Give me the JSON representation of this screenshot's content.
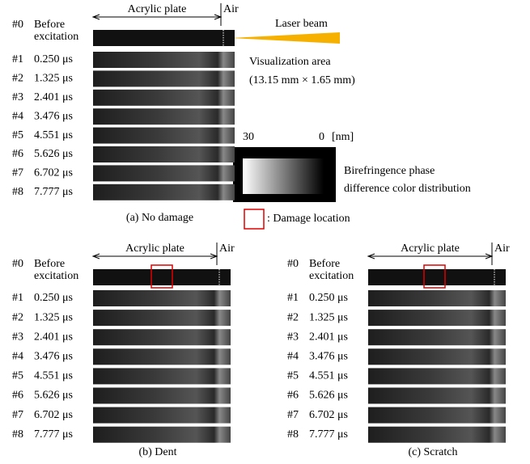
{
  "panels": [
    {
      "header": {
        "plate": "Acrylic plate",
        "air": "Air"
      },
      "rows": [
        {
          "id": "#0",
          "label": [
            "Before",
            "excitation"
          ]
        },
        {
          "id": "#1",
          "label": [
            "0.250 μs"
          ]
        },
        {
          "id": "#2",
          "label": [
            "1.325 μs"
          ]
        },
        {
          "id": "#3",
          "label": [
            "2.401 μs"
          ]
        },
        {
          "id": "#4",
          "label": [
            "3.476 μs"
          ]
        },
        {
          "id": "#5",
          "label": [
            "4.551 μs"
          ]
        },
        {
          "id": "#6",
          "label": [
            "5.626 μs"
          ]
        },
        {
          "id": "#7",
          "label": [
            "6.702 μs"
          ]
        },
        {
          "id": "#8",
          "label": [
            "7.777 μs"
          ]
        }
      ],
      "caption": "(a) No damage"
    },
    {
      "header": {
        "plate": "Acrylic plate",
        "air": "Air"
      },
      "rows": [
        {
          "id": "#0",
          "label": [
            "Before",
            "excitation"
          ]
        },
        {
          "id": "#1",
          "label": [
            "0.250 μs"
          ]
        },
        {
          "id": "#2",
          "label": [
            "1.325 μs"
          ]
        },
        {
          "id": "#3",
          "label": [
            "2.401 μs"
          ]
        },
        {
          "id": "#4",
          "label": [
            "3.476 μs"
          ]
        },
        {
          "id": "#5",
          "label": [
            "4.551 μs"
          ]
        },
        {
          "id": "#6",
          "label": [
            "5.626 μs"
          ]
        },
        {
          "id": "#7",
          "label": [
            "6.702 μs"
          ]
        },
        {
          "id": "#8",
          "label": [
            "7.777 μs"
          ]
        }
      ],
      "caption": "(b) Dent"
    },
    {
      "header": {
        "plate": "Acrylic plate",
        "air": "Air"
      },
      "rows": [
        {
          "id": "#0",
          "label": [
            "Before",
            "excitation"
          ]
        },
        {
          "id": "#1",
          "label": [
            "0.250 μs"
          ]
        },
        {
          "id": "#2",
          "label": [
            "1.325 μs"
          ]
        },
        {
          "id": "#3",
          "label": [
            "2.401 μs"
          ]
        },
        {
          "id": "#4",
          "label": [
            "3.476 μs"
          ]
        },
        {
          "id": "#5",
          "label": [
            "4.551 μs"
          ]
        },
        {
          "id": "#6",
          "label": [
            "5.626 μs"
          ]
        },
        {
          "id": "#7",
          "label": [
            "6.702 μs"
          ]
        },
        {
          "id": "#8",
          "label": [
            "7.777 μs"
          ]
        }
      ],
      "caption": "(c) Scratch"
    }
  ],
  "annotations": {
    "laser": "Laser beam",
    "area": "Visualization area",
    "area_size": "(13.15 mm × 1.65 mm)",
    "scale_max": "30",
    "scale_min": "0",
    "scale_unit": "[nm]",
    "colormap": [
      "Birefringence phase",
      "difference color distribution"
    ],
    "damage": ": Damage location"
  }
}
